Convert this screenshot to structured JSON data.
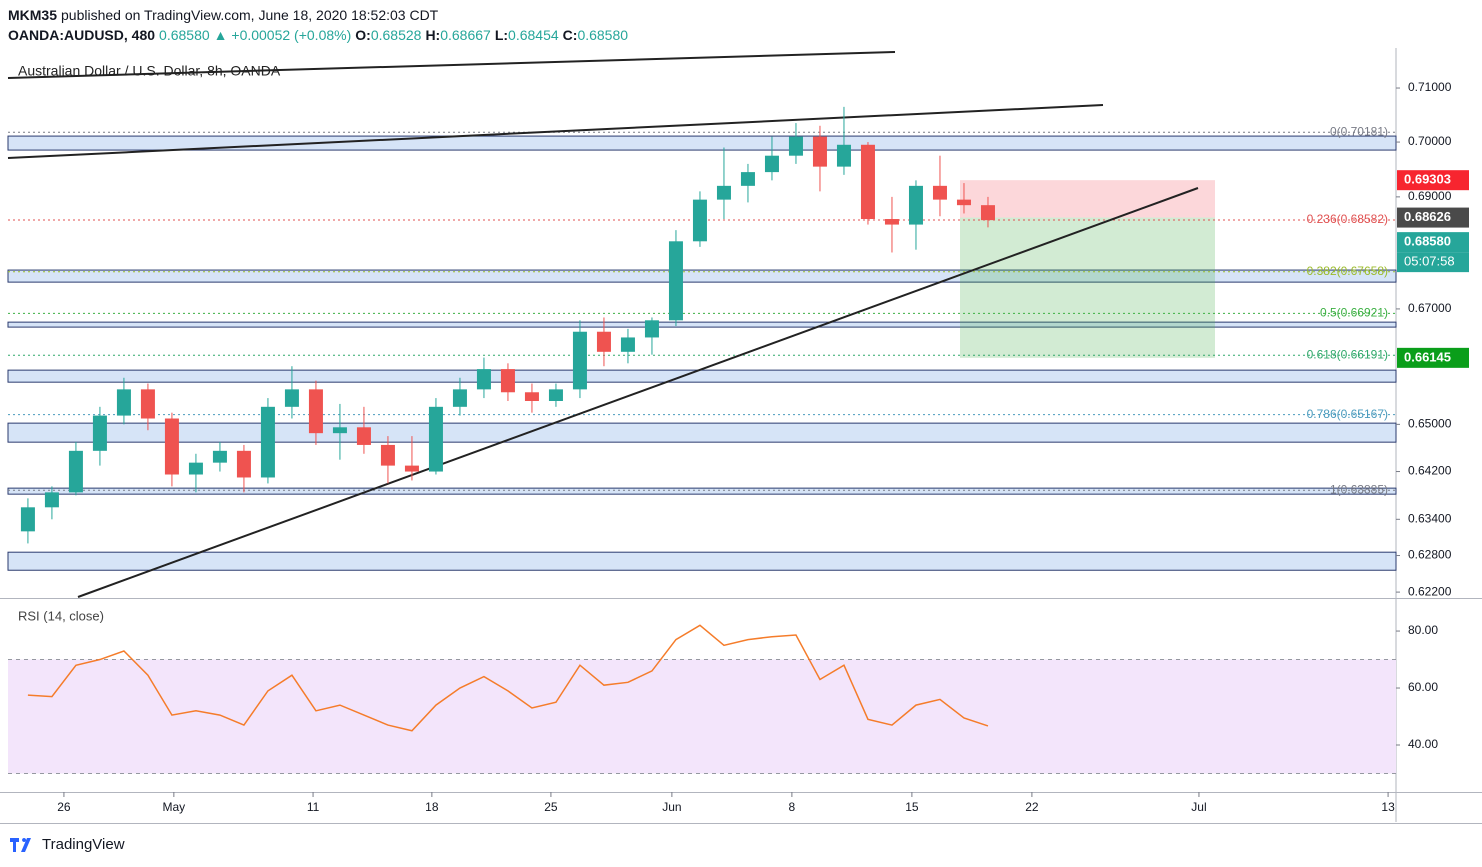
{
  "header": {
    "publisher": "MKM35",
    "published": "published on TradingView.com, June 18, 2020 18:52:03 CDT",
    "symbol": "OANDA:AUDUSD, 480",
    "last": "0.68580",
    "change": "▲ +0.00052 (+0.08%)",
    "ohlc": [
      {
        "label": "O:",
        "value": "0.68528"
      },
      {
        "label": "H:",
        "value": "0.68667"
      },
      {
        "label": "L:",
        "value": "0.68454"
      },
      {
        "label": "C:",
        "value": "0.68580"
      }
    ]
  },
  "footer": {
    "brand": "TradingView"
  },
  "chart_data": [
    {
      "type": "candlestick",
      "title": "Australian Dollar / U.S. Dollar, 8h, OANDA",
      "log_scale": true,
      "up_color": "#26a69a",
      "down_color": "#ef5350",
      "x": [
        -1.5,
        -0.5,
        0.5,
        1.5,
        2.5,
        3.5,
        4.5,
        5.5,
        6.5,
        7.5,
        8.5,
        9.5,
        10.5,
        11.5,
        12.5,
        13.5,
        14.5,
        15.5,
        16.5,
        17.5,
        18.5,
        19.5,
        20.5,
        21.5,
        22.5,
        23.5,
        24.5,
        25.5,
        26.5,
        27.5,
        28.5,
        29.5,
        30.5,
        31.5,
        32.5,
        33.5,
        34.5,
        35.5,
        36.5,
        37.5,
        38.5
      ],
      "open": [
        0.632,
        0.636,
        0.6385,
        0.6455,
        0.6515,
        0.656,
        0.651,
        0.6415,
        0.6435,
        0.6455,
        0.641,
        0.653,
        0.656,
        0.6485,
        0.6495,
        0.6465,
        0.643,
        0.642,
        0.653,
        0.656,
        0.6595,
        0.6555,
        0.654,
        0.656,
        0.666,
        0.6625,
        0.665,
        0.668,
        0.682,
        0.6895,
        0.692,
        0.6945,
        0.6975,
        0.701,
        0.6955,
        0.6995,
        0.686,
        0.685,
        0.692,
        0.6895,
        0.6885
      ],
      "high": [
        0.6375,
        0.6395,
        0.647,
        0.653,
        0.658,
        0.657,
        0.652,
        0.645,
        0.647,
        0.6465,
        0.6545,
        0.66,
        0.6575,
        0.6535,
        0.653,
        0.648,
        0.648,
        0.6545,
        0.658,
        0.6615,
        0.6605,
        0.657,
        0.657,
        0.668,
        0.6685,
        0.6665,
        0.6685,
        0.684,
        0.691,
        0.699,
        0.696,
        0.701,
        0.7035,
        0.703,
        0.7065,
        0.7,
        0.69,
        0.693,
        0.6975,
        0.6925,
        0.69
      ],
      "low": [
        0.63,
        0.634,
        0.638,
        0.643,
        0.65,
        0.649,
        0.6395,
        0.6385,
        0.642,
        0.6385,
        0.64,
        0.651,
        0.6465,
        0.644,
        0.645,
        0.64,
        0.6405,
        0.6415,
        0.6515,
        0.6545,
        0.654,
        0.652,
        0.653,
        0.6545,
        0.66,
        0.6605,
        0.662,
        0.667,
        0.681,
        0.686,
        0.689,
        0.693,
        0.696,
        0.691,
        0.694,
        0.685,
        0.68,
        0.6805,
        0.6865,
        0.687,
        0.6845
      ],
      "close": [
        0.636,
        0.6385,
        0.6455,
        0.6515,
        0.656,
        0.651,
        0.6415,
        0.6435,
        0.6455,
        0.641,
        0.653,
        0.656,
        0.6485,
        0.6495,
        0.6465,
        0.643,
        0.642,
        0.653,
        0.656,
        0.6595,
        0.6555,
        0.654,
        0.656,
        0.666,
        0.6625,
        0.665,
        0.668,
        0.682,
        0.6895,
        0.692,
        0.6945,
        0.6975,
        0.701,
        0.6955,
        0.6995,
        0.686,
        0.685,
        0.692,
        0.6895,
        0.6885,
        0.6858
      ],
      "xlim": [
        -2.33,
        55.5
      ],
      "xticks": [
        {
          "value": 0,
          "label": "26"
        },
        {
          "value": 4.58,
          "label": "May"
        },
        {
          "value": 10.38,
          "label": "11"
        },
        {
          "value": 15.33,
          "label": "18"
        },
        {
          "value": 20.29,
          "label": "25"
        },
        {
          "value": 25.33,
          "label": "Jun"
        },
        {
          "value": 30.33,
          "label": "8"
        },
        {
          "value": 35.33,
          "label": "15"
        },
        {
          "value": 40.33,
          "label": "22"
        },
        {
          "value": 47.29,
          "label": "Jul"
        },
        {
          "value": 55.17,
          "label": "13"
        }
      ],
      "ylim": [
        0.6212,
        0.7175
      ],
      "yticks": [
        {
          "value": 0.71,
          "label": "0.71000"
        },
        {
          "value": 0.7,
          "label": "0.70000"
        },
        {
          "value": 0.69,
          "label": "0.69000"
        },
        {
          "value": 0.67,
          "label": "0.67000"
        },
        {
          "value": 0.65,
          "label": "0.65000"
        },
        {
          "value": 0.642,
          "label": "0.64200"
        },
        {
          "value": 0.634,
          "label": "0.63400"
        },
        {
          "value": 0.628,
          "label": "0.62800"
        },
        {
          "value": 0.622,
          "label": "0.62200"
        }
      ],
      "zone_color": "#d6e4f7",
      "zones": [
        [
          0.69853,
          0.7011
        ],
        [
          0.67473,
          0.67687
        ],
        [
          0.66681,
          0.66768
        ],
        [
          0.65724,
          0.65932
        ],
        [
          0.64697,
          0.65021
        ],
        [
          0.6382,
          0.63921
        ],
        [
          0.62558,
          0.62855
        ]
      ],
      "fib_levels": [
        {
          "value": 0.70181,
          "label": "0(0.70181)",
          "color": "#787b86"
        },
        {
          "value": 0.68582,
          "label": "0.236(0.68582)",
          "color": "#e05050"
        },
        {
          "value": 0.67658,
          "label": "0.382(0.67658)",
          "color": "#9bbb2a"
        },
        {
          "value": 0.66921,
          "label": "0.5(0.66921)",
          "color": "#3cb043"
        },
        {
          "value": 0.66191,
          "label": "0.618(0.66191)",
          "color": "#2fa86a"
        },
        {
          "value": 0.65167,
          "label": "0.786(0.65167)",
          "color": "#4a9bbd"
        },
        {
          "value": 0.63885,
          "label": "1(0.63885)",
          "color": "#787b86"
        }
      ],
      "price_labels": [
        {
          "value": 0.69303,
          "label": "0.69303",
          "color": "#f7252f"
        },
        {
          "value": 0.68626,
          "label": "0.68626",
          "color": "#4a4a4a"
        },
        {
          "value": 0.6858,
          "label": "0.68580",
          "color": "#26a69a"
        },
        {
          "value": 0.66145,
          "label": "0.66145",
          "color": "#0a9e1a"
        }
      ],
      "countdown": "05:07:58"
    },
    {
      "type": "line",
      "title": "RSI (14, close)",
      "color": "#f57c2a",
      "band": [
        30,
        70
      ],
      "band_color": "#f3e5fb",
      "x": [
        -1.5,
        -0.5,
        0.5,
        1.5,
        2.5,
        3.5,
        4.5,
        5.5,
        6.5,
        7.5,
        8.5,
        9.5,
        10.5,
        11.5,
        12.5,
        13.5,
        14.5,
        15.5,
        16.5,
        17.5,
        18.5,
        19.5,
        20.5,
        21.5,
        22.5,
        23.5,
        24.5,
        25.5,
        26.5,
        27.5,
        28.5,
        29.5,
        30.5,
        31.5,
        32.5,
        33.5,
        34.5,
        35.5,
        36.5,
        37.5,
        38.5
      ],
      "values": [
        57.5,
        57,
        68,
        70,
        73,
        64.5,
        50.5,
        52,
        50.5,
        47,
        59,
        64.5,
        52,
        54,
        50.5,
        47,
        45,
        54,
        60,
        64,
        59,
        53,
        55,
        68,
        61,
        62,
        66,
        77,
        82,
        75,
        77,
        78,
        78.6,
        63,
        68,
        49,
        47,
        54,
        56,
        49.5,
        46.7
      ],
      "ylim": [
        24.2,
        90.9
      ],
      "yticks": [
        {
          "value": 80,
          "label": "80.00"
        },
        {
          "value": 60,
          "label": "60.00"
        },
        {
          "value": 40,
          "label": "40.00"
        }
      ]
    }
  ]
}
